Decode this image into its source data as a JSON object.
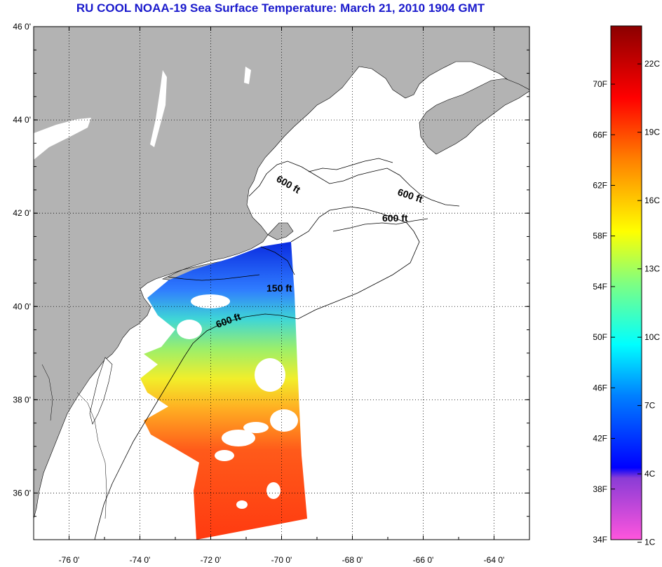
{
  "title": "RU COOL  NOAA-19  Sea Surface Temperature:  March 21, 2010 1904 GMT",
  "map": {
    "lon_range": [
      -77,
      -63
    ],
    "lat_range": [
      35,
      46
    ],
    "grid": true,
    "lon_ticks": [
      {
        "value": -76,
        "label": "-76 0'"
      },
      {
        "value": -74,
        "label": "-74 0'"
      },
      {
        "value": -72,
        "label": "-72 0'"
      },
      {
        "value": -70,
        "label": "-70 0'"
      },
      {
        "value": -68,
        "label": "-68 0'"
      },
      {
        "value": -66,
        "label": "-66 0'"
      },
      {
        "value": -64,
        "label": "-64 0'"
      }
    ],
    "lat_ticks": [
      {
        "value": 46,
        "label": "46 0'"
      },
      {
        "value": 44,
        "label": "44 0'"
      },
      {
        "value": 42,
        "label": "42 0'"
      },
      {
        "value": 40,
        "label": "40 0'"
      },
      {
        "value": 38,
        "label": "38 0'"
      },
      {
        "value": 36,
        "label": "36 0'"
      }
    ],
    "land_color": "#b3b3b3",
    "contour_labels": [
      "600 ft",
      "600 ft",
      "600 ft",
      "150 ft",
      "600 ft"
    ]
  },
  "colorbar": {
    "fahrenheit_labels": [
      "70F",
      "66F",
      "62F",
      "58F",
      "54F",
      "50F",
      "46F",
      "42F",
      "38F",
      "34F"
    ],
    "celsius_labels": [
      "22C",
      "19C",
      "16C",
      "13C",
      "10C",
      "7C",
      "4C",
      "1C"
    ]
  }
}
